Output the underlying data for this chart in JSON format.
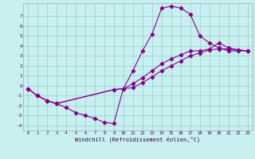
{
  "xlabel": "Windchill (Refroidissement éolien,°C)",
  "bg_color": "#c8f0f0",
  "line_color": "#880088",
  "grid_color": "#99cccc",
  "xlim": [
    -0.5,
    23.5
  ],
  "ylim": [
    -4.5,
    8.3
  ],
  "xticks": [
    0,
    1,
    2,
    3,
    4,
    5,
    6,
    7,
    8,
    9,
    10,
    11,
    12,
    13,
    14,
    15,
    16,
    17,
    18,
    19,
    20,
    21,
    22,
    23
  ],
  "yticks": [
    -4,
    -3,
    -2,
    -1,
    0,
    1,
    2,
    3,
    4,
    5,
    6,
    7
  ],
  "line1_x": [
    0,
    1,
    2,
    3,
    4,
    5,
    6,
    7,
    8,
    9,
    10,
    11,
    12,
    13,
    14,
    15,
    16,
    17,
    18,
    19,
    20,
    21,
    22,
    23
  ],
  "line1_y": [
    -0.3,
    -1.0,
    -1.5,
    -1.8,
    -2.2,
    -2.7,
    -3.0,
    -3.3,
    -3.7,
    -3.8,
    -0.3,
    1.5,
    3.5,
    5.2,
    7.8,
    8.0,
    7.8,
    7.2,
    5.0,
    4.3,
    3.8,
    3.5,
    3.5,
    3.5
  ],
  "line2_x": [
    0,
    1,
    2,
    3,
    9,
    10,
    11,
    12,
    13,
    14,
    15,
    16,
    17,
    18,
    19,
    20,
    21,
    22,
    23
  ],
  "line2_y": [
    -0.3,
    -1.0,
    -1.5,
    -1.8,
    -0.4,
    -0.3,
    -0.2,
    0.3,
    0.9,
    1.5,
    2.0,
    2.5,
    3.0,
    3.3,
    3.6,
    3.7,
    3.7,
    3.6,
    3.5
  ],
  "line3_x": [
    0,
    1,
    2,
    3,
    9,
    10,
    11,
    12,
    13,
    14,
    15,
    16,
    17,
    18,
    19,
    20,
    21,
    22,
    23
  ],
  "line3_y": [
    -0.3,
    -1.0,
    -1.5,
    -1.8,
    -0.4,
    -0.3,
    0.2,
    0.8,
    1.5,
    2.2,
    2.7,
    3.1,
    3.5,
    3.5,
    3.7,
    4.3,
    3.8,
    3.6,
    3.5
  ]
}
